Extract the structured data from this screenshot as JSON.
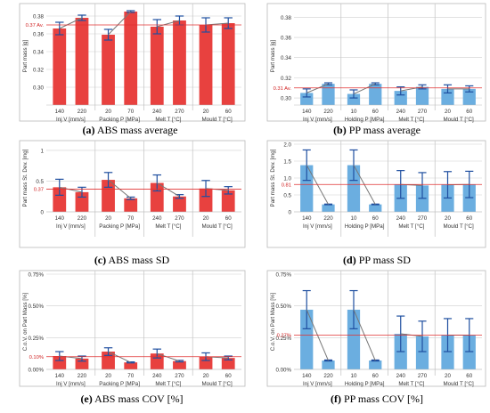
{
  "chart_data": [
    {
      "type": "bar",
      "panel": "a",
      "caption_label": "(a)",
      "caption_text": "ABS mass average",
      "ylabel": "Part mass [g]",
      "ylim": [
        0.28,
        0.39
      ],
      "yticks": [
        0.3,
        0.32,
        0.34,
        0.36,
        0.38
      ],
      "ytick_labels": [
        "0.30",
        "0.32",
        "0.34",
        "0.36",
        "0.38"
      ],
      "ref_value": 0.37,
      "ref_label": "0.37 Av.",
      "groups": [
        {
          "name": "Inj  V [mm/s]",
          "categories": [
            "140",
            "220"
          ],
          "values": [
            0.366,
            0.378
          ],
          "errors": [
            0.007,
            0.003
          ]
        },
        {
          "name": "Packing  P [MPa]",
          "categories": [
            "20",
            "70"
          ],
          "values": [
            0.359,
            0.385
          ],
          "errors": [
            0.006,
            0.001
          ]
        },
        {
          "name": "Melt  T [°C]",
          "categories": [
            "240",
            "270"
          ],
          "values": [
            0.368,
            0.375
          ],
          "errors": [
            0.008,
            0.005
          ]
        },
        {
          "name": "Mould  T [°C]",
          "categories": [
            "20",
            "60"
          ],
          "values": [
            0.37,
            0.372
          ],
          "errors": [
            0.008,
            0.006
          ]
        }
      ]
    },
    {
      "type": "bar",
      "panel": "b",
      "caption_label": "(b)",
      "caption_text": "PP mass average",
      "ylabel": "Part mass [g]",
      "ylim": [
        0.293,
        0.39
      ],
      "yticks": [
        0.3,
        0.32,
        0.34,
        0.36,
        0.38
      ],
      "ytick_labels": [
        "0.30",
        "0.32",
        "0.34",
        "0.36",
        "0.38"
      ],
      "ref_value": 0.31,
      "ref_label": "0.31 Av.",
      "groups": [
        {
          "name": "Inj  V [mm/s]",
          "categories": [
            "140",
            "220"
          ],
          "values": [
            0.305,
            0.314
          ],
          "errors": [
            0.004,
            0.001
          ]
        },
        {
          "name": "Holding  P [MPa]",
          "categories": [
            "10",
            "60"
          ],
          "values": [
            0.304,
            0.314
          ],
          "errors": [
            0.004,
            0.001
          ]
        },
        {
          "name": "Melt  T [°C]",
          "categories": [
            "240",
            "270"
          ],
          "values": [
            0.307,
            0.311
          ],
          "errors": [
            0.004,
            0.002
          ]
        },
        {
          "name": "Mould  T [°C]",
          "categories": [
            "20",
            "60"
          ],
          "values": [
            0.309,
            0.309
          ],
          "errors": [
            0.004,
            0.003
          ]
        }
      ]
    },
    {
      "type": "bar",
      "panel": "c",
      "caption_label": "(c)",
      "caption_text": "ABS mass SD",
      "ylabel": "Part mass St. Dev. [mg]",
      "ylim": [
        0,
        1.1
      ],
      "yticks": [
        0,
        0.5,
        1
      ],
      "ytick_labels": [
        "0",
        "0.5",
        "1"
      ],
      "ref_value": 0.37,
      "ref_label": "0.37",
      "groups": [
        {
          "name": "Inj  V [mm/s]",
          "categories": [
            "140",
            "220"
          ],
          "values": [
            0.4,
            0.32
          ],
          "errors": [
            0.13,
            0.08
          ]
        },
        {
          "name": "Packing  P [MPa]",
          "categories": [
            "20",
            "70"
          ],
          "values": [
            0.52,
            0.22
          ],
          "errors": [
            0.12,
            0.02
          ]
        },
        {
          "name": "Melt  T [°C]",
          "categories": [
            "240",
            "270"
          ],
          "values": [
            0.47,
            0.25
          ],
          "errors": [
            0.13,
            0.03
          ]
        },
        {
          "name": "Mould  T [°C]",
          "categories": [
            "20",
            "60"
          ],
          "values": [
            0.38,
            0.35
          ],
          "errors": [
            0.13,
            0.06
          ]
        }
      ]
    },
    {
      "type": "bar",
      "panel": "d",
      "caption_label": "(d)",
      "caption_text": "PP mass SD",
      "ylabel": "Part mass St. Dev. [mg]",
      "ylim": [
        0,
        2
      ],
      "yticks": [
        0,
        0.5,
        1,
        1.5,
        2
      ],
      "ytick_labels": [
        "0",
        "0.5",
        "1.0",
        "1.5",
        "2.0"
      ],
      "ref_value": 0.81,
      "ref_label": "0.81",
      "groups": [
        {
          "name": "Inj  V [mm/s]",
          "categories": [
            "140",
            "220"
          ],
          "values": [
            1.38,
            0.22
          ],
          "errors": [
            0.45,
            0.01
          ]
        },
        {
          "name": "Holding  P [MPa]",
          "categories": [
            "10",
            "60"
          ],
          "values": [
            1.38,
            0.22
          ],
          "errors": [
            0.45,
            0.01
          ]
        },
        {
          "name": "Melt  T [°C]",
          "categories": [
            "240",
            "270"
          ],
          "values": [
            0.81,
            0.78
          ],
          "errors": [
            0.41,
            0.38
          ]
        },
        {
          "name": "Mould  T [°C]",
          "categories": [
            "20",
            "60"
          ],
          "values": [
            0.8,
            0.81
          ],
          "errors": [
            0.39,
            0.39
          ]
        }
      ]
    },
    {
      "type": "bar",
      "panel": "e",
      "caption_label": "(e)",
      "caption_text": "ABS mass COV [%]",
      "ylabel": "C.o.V. on Part Mass [%]",
      "ylim": [
        0,
        0.75
      ],
      "yticks": [
        0,
        0.25,
        0.5,
        0.75
      ],
      "ytick_labels": [
        "0.00%",
        "0.25%",
        "0.50%",
        "0.75%"
      ],
      "ref_value": 0.1,
      "ref_label": "0.10%",
      "groups": [
        {
          "name": "Inj  V [mm/s]",
          "categories": [
            "140",
            "220"
          ],
          "values": [
            0.105,
            0.085
          ],
          "errors": [
            0.035,
            0.02
          ]
        },
        {
          "name": "Packing  P [MPa]",
          "categories": [
            "20",
            "70"
          ],
          "values": [
            0.14,
            0.055
          ],
          "errors": [
            0.03,
            0.004
          ]
        },
        {
          "name": "Melt  T [°C]",
          "categories": [
            "240",
            "270"
          ],
          "values": [
            0.125,
            0.065
          ],
          "errors": [
            0.035,
            0.006
          ]
        },
        {
          "name": "Mould  T [°C]",
          "categories": [
            "20",
            "60"
          ],
          "values": [
            0.1,
            0.09
          ],
          "errors": [
            0.03,
            0.015
          ]
        }
      ]
    },
    {
      "type": "bar",
      "panel": "f",
      "caption_label": "(f)",
      "caption_text": "PP mass COV [%]",
      "ylabel": "C.o.V. on Part Mass [%]",
      "ylim": [
        0,
        0.75
      ],
      "yticks": [
        0,
        0.25,
        0.5,
        0.75
      ],
      "ytick_labels": [
        "0.00%",
        "0.25%",
        "0.50%",
        "0.75%"
      ],
      "ref_value": 0.27,
      "ref_label": "0.27%",
      "groups": [
        {
          "name": "Inj  V [mm/s]",
          "categories": [
            "140",
            "220"
          ],
          "values": [
            0.47,
            0.07
          ],
          "errors": [
            0.15,
            0.004
          ]
        },
        {
          "name": "Holding  P [MPa]",
          "categories": [
            "10",
            "60"
          ],
          "values": [
            0.47,
            0.07
          ],
          "errors": [
            0.15,
            0.004
          ]
        },
        {
          "name": "Melt  T [°C]",
          "categories": [
            "240",
            "270"
          ],
          "values": [
            0.28,
            0.26
          ],
          "errors": [
            0.14,
            0.12
          ]
        },
        {
          "name": "Mould  T [°C]",
          "categories": [
            "20",
            "60"
          ],
          "values": [
            0.27,
            0.27
          ],
          "errors": [
            0.13,
            0.13
          ]
        }
      ]
    }
  ],
  "colors": {
    "abs_bar": "#e8413f",
    "pp_bar": "#6baee0",
    "error_bar": "#1f4fa0",
    "ref_line": "#e03030",
    "ref_label": "#d02020",
    "trend_line": "#777777",
    "grid": "#cfcfcf",
    "divider": "#c8c8c8",
    "frame": "#b9b9b9",
    "text": "#333333"
  }
}
